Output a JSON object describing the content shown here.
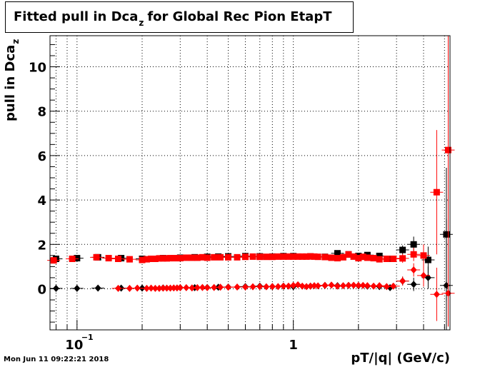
{
  "chart_data": {
    "type": "scatter",
    "title_main": "Fitted pull in Dca",
    "title_sub": "z",
    "title_rest": "for Global Rec Pion EtapT",
    "ylabel_main": "pull in Dca",
    "ylabel_sub": "z",
    "xlabel": "pT/|q| (GeV/c)",
    "x_scale": "log",
    "xlim": [
      0.075,
      5.3
    ],
    "ylim": [
      -1.85,
      11.4
    ],
    "grid": true,
    "y_ticks": [
      {
        "v": 0,
        "label": "0"
      },
      {
        "v": 2,
        "label": "2"
      },
      {
        "v": 4,
        "label": "4"
      },
      {
        "v": 6,
        "label": "6"
      },
      {
        "v": 8,
        "label": "8"
      },
      {
        "v": 10,
        "label": "10"
      }
    ],
    "x_ticks": [
      {
        "v": 0.1,
        "label": "10",
        "exp": "−1"
      },
      {
        "v": 1,
        "label": "1",
        "exp": ""
      }
    ],
    "colors": {
      "black": "#000000",
      "red": "#ff0000"
    },
    "series": [
      {
        "color": "black",
        "marker": "square",
        "x": [
          0.08,
          0.1,
          0.125,
          0.16,
          0.2,
          0.25,
          0.3,
          0.35,
          0.4,
          0.45,
          0.5,
          0.6,
          0.7,
          0.8,
          0.9,
          1.0,
          1.2,
          1.4,
          1.6,
          1.8,
          2.0,
          2.2,
          2.5,
          2.8,
          3.2,
          3.6,
          4.2,
          5.1
        ],
        "y": [
          1.35,
          1.38,
          1.42,
          1.38,
          1.35,
          1.38,
          1.4,
          1.42,
          1.44,
          1.45,
          1.46,
          1.47,
          1.46,
          1.45,
          1.47,
          1.47,
          1.46,
          1.44,
          1.6,
          1.55,
          1.48,
          1.52,
          1.48,
          1.35,
          1.75,
          2.0,
          1.3,
          2.45
        ],
        "err": [
          0.03,
          0.03,
          0.03,
          0.03,
          0.03,
          0.03,
          0.03,
          0.03,
          0.03,
          0.03,
          0.03,
          0.03,
          0.03,
          0.03,
          0.03,
          0.03,
          0.04,
          0.04,
          0.05,
          0.05,
          0.06,
          0.07,
          0.08,
          0.1,
          0.2,
          0.35,
          0.6,
          3.0
        ]
      },
      {
        "color": "black",
        "marker": "diamond",
        "x": [
          0.08,
          0.1,
          0.125,
          0.16,
          0.2,
          0.25,
          0.3,
          0.35,
          0.4,
          0.45,
          0.5,
          0.6,
          0.7,
          0.8,
          0.9,
          1.0,
          1.2,
          1.4,
          1.6,
          1.8,
          2.0,
          2.2,
          2.5,
          2.8,
          3.2,
          3.6,
          4.2,
          5.1
        ],
        "y": [
          0.02,
          0.02,
          0.03,
          0.03,
          0.03,
          0.04,
          0.05,
          0.05,
          0.06,
          0.07,
          0.08,
          0.1,
          0.12,
          0.1,
          0.12,
          0.1,
          0.12,
          0.15,
          0.14,
          0.15,
          0.14,
          0.12,
          0.1,
          0.05,
          0.35,
          0.2,
          0.5,
          0.15
        ],
        "err": [
          0.02,
          0.02,
          0.02,
          0.02,
          0.02,
          0.02,
          0.02,
          0.02,
          0.02,
          0.02,
          0.02,
          0.02,
          0.02,
          0.02,
          0.02,
          0.03,
          0.03,
          0.03,
          0.04,
          0.04,
          0.05,
          0.06,
          0.07,
          0.1,
          0.2,
          0.3,
          0.5,
          3.0
        ]
      },
      {
        "color": "red",
        "marker": "square",
        "x": [
          0.078,
          0.095,
          0.123,
          0.14,
          0.155,
          0.175,
          0.2,
          0.21,
          0.22,
          0.23,
          0.24,
          0.25,
          0.26,
          0.27,
          0.28,
          0.29,
          0.3,
          0.32,
          0.34,
          0.36,
          0.38,
          0.4,
          0.43,
          0.46,
          0.5,
          0.55,
          0.6,
          0.65,
          0.7,
          0.75,
          0.8,
          0.85,
          0.9,
          0.95,
          1.0,
          1.05,
          1.1,
          1.15,
          1.2,
          1.25,
          1.3,
          1.4,
          1.5,
          1.6,
          1.7,
          1.8,
          1.9,
          2.0,
          2.1,
          2.2,
          2.35,
          2.5,
          2.7,
          2.9,
          3.2,
          3.6,
          4.0,
          4.6,
          5.2
        ],
        "y": [
          1.28,
          1.35,
          1.42,
          1.38,
          1.35,
          1.33,
          1.3,
          1.33,
          1.35,
          1.35,
          1.37,
          1.37,
          1.37,
          1.38,
          1.38,
          1.38,
          1.38,
          1.4,
          1.4,
          1.4,
          1.42,
          1.4,
          1.42,
          1.42,
          1.42,
          1.42,
          1.44,
          1.45,
          1.44,
          1.44,
          1.44,
          1.45,
          1.45,
          1.45,
          1.45,
          1.45,
          1.45,
          1.45,
          1.46,
          1.45,
          1.44,
          1.43,
          1.4,
          1.38,
          1.42,
          1.55,
          1.45,
          1.38,
          1.44,
          1.4,
          1.38,
          1.33,
          1.35,
          1.35,
          1.37,
          1.55,
          1.5,
          4.35,
          6.25
        ],
        "err": [
          0.03,
          0.03,
          0.03,
          0.03,
          0.03,
          0.03,
          0.03,
          0.03,
          0.03,
          0.03,
          0.03,
          0.03,
          0.03,
          0.03,
          0.03,
          0.03,
          0.03,
          0.03,
          0.03,
          0.03,
          0.03,
          0.03,
          0.03,
          0.03,
          0.03,
          0.03,
          0.03,
          0.03,
          0.03,
          0.03,
          0.03,
          0.03,
          0.03,
          0.03,
          0.03,
          0.03,
          0.03,
          0.03,
          0.04,
          0.04,
          0.04,
          0.04,
          0.05,
          0.05,
          0.05,
          0.06,
          0.06,
          0.06,
          0.07,
          0.07,
          0.08,
          0.08,
          0.1,
          0.12,
          0.2,
          0.3,
          0.5,
          2.8,
          7.5
        ]
      },
      {
        "color": "red",
        "marker": "diamond",
        "x": [
          0.155,
          0.175,
          0.19,
          0.21,
          0.22,
          0.23,
          0.24,
          0.25,
          0.26,
          0.27,
          0.28,
          0.29,
          0.3,
          0.32,
          0.34,
          0.36,
          0.38,
          0.4,
          0.43,
          0.46,
          0.5,
          0.55,
          0.6,
          0.65,
          0.7,
          0.75,
          0.8,
          0.85,
          0.9,
          0.95,
          1.0,
          1.05,
          1.1,
          1.15,
          1.2,
          1.25,
          1.3,
          1.4,
          1.5,
          1.6,
          1.7,
          1.8,
          1.9,
          2.0,
          2.1,
          2.2,
          2.35,
          2.5,
          2.7,
          2.9,
          3.2,
          3.6,
          4.0,
          4.6,
          5.2
        ],
        "y": [
          0.02,
          0.02,
          0.03,
          0.02,
          0.03,
          0.02,
          0.02,
          0.03,
          0.03,
          0.03,
          0.04,
          0.04,
          0.05,
          0.05,
          0.04,
          0.05,
          0.06,
          0.05,
          0.06,
          0.07,
          0.07,
          0.08,
          0.08,
          0.09,
          0.1,
          0.09,
          0.1,
          0.1,
          0.12,
          0.12,
          0.15,
          0.18,
          0.12,
          0.1,
          0.12,
          0.14,
          0.13,
          0.15,
          0.17,
          0.12,
          0.14,
          0.15,
          0.16,
          0.15,
          0.15,
          0.14,
          0.12,
          0.14,
          0.1,
          0.12,
          0.35,
          0.85,
          0.6,
          -0.25,
          -0.2
        ],
        "err": [
          0.02,
          0.02,
          0.02,
          0.02,
          0.02,
          0.02,
          0.02,
          0.02,
          0.02,
          0.02,
          0.02,
          0.02,
          0.02,
          0.02,
          0.02,
          0.02,
          0.02,
          0.02,
          0.02,
          0.02,
          0.02,
          0.02,
          0.02,
          0.02,
          0.02,
          0.02,
          0.02,
          0.02,
          0.02,
          0.03,
          0.03,
          0.03,
          0.03,
          0.03,
          0.03,
          0.03,
          0.03,
          0.04,
          0.04,
          0.04,
          0.05,
          0.05,
          0.05,
          0.06,
          0.06,
          0.07,
          0.08,
          0.09,
          0.1,
          0.12,
          0.2,
          0.3,
          0.5,
          1.2,
          1.5
        ]
      }
    ]
  },
  "timestamp": "Mon Jun 11 09:22:21 2018"
}
